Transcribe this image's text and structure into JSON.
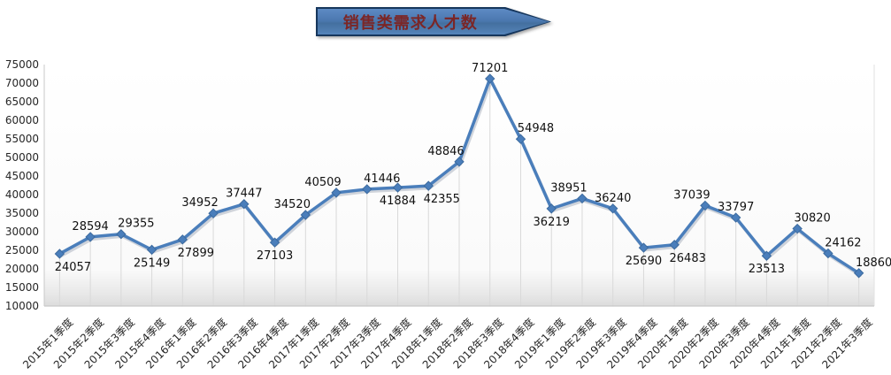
{
  "title": {
    "text": "销售类需求人才数"
  },
  "colors": {
    "line": "#4a7ebb",
    "marker_edge": "#3c6a9e",
    "line_shadow": "rgba(125,138,158,0.35)",
    "drop_line": "#d9d9d9",
    "axis_line": "#c8c8c8",
    "tick_text": "#262626",
    "data_label_text": "#111111",
    "plot_bg_top": "#ffffff",
    "plot_bg_bottom": "#dcdcdc",
    "banner_border": "#16365c",
    "banner_fill_top": "#5d8ac4",
    "banner_fill_bottom": "#5584ba",
    "banner_text": "#7b2626"
  },
  "chart_data": {
    "type": "line",
    "title": "销售类需求人才数",
    "categories": [
      "2015年1季度",
      "2015年2季度",
      "2015年3季度",
      "2015年4季度",
      "2016年1季度",
      "2016年2季度",
      "2016年3季度",
      "2016年4季度",
      "2017年1季度",
      "2017年2季度",
      "2017年3季度",
      "2017年4季度",
      "2018年1季度",
      "2018年2季度",
      "2018年3季度",
      "2018年4季度",
      "2019年1季度",
      "2019年2季度",
      "2019年3季度",
      "2019年4季度",
      "2020年1季度",
      "2020年2季度",
      "2020年3季度",
      "2020年4季度",
      "2021年1季度",
      "2021年2季度",
      "2021年3季度"
    ],
    "series": [
      {
        "name": "销售类需求人才数",
        "values": [
          24057,
          28594,
          29355,
          25149,
          27899,
          34952,
          37447,
          27103,
          34520,
          40509,
          41446,
          41884,
          42355,
          48846,
          71201,
          54948,
          36219,
          38951,
          36240,
          25690,
          26483,
          37039,
          33797,
          23513,
          30820,
          24162,
          18860
        ]
      }
    ],
    "xlabel": "",
    "ylabel": "",
    "ylim": [
      10000,
      75000
    ],
    "ytick_step": 5000,
    "yticks": [
      10000,
      15000,
      20000,
      25000,
      30000,
      35000,
      40000,
      45000,
      50000,
      55000,
      60000,
      65000,
      70000,
      75000
    ],
    "legend": "none",
    "grid": "vertical drop lines from each point to x-axis",
    "marker": "diamond",
    "data_labels": true,
    "label_positions": [
      "below-right",
      "above",
      "above-right",
      "below",
      "below-right",
      "above-left",
      "above",
      "below",
      "above-left",
      "above-left",
      "above-right",
      "below",
      "below-right",
      "above-left",
      "above",
      "above-right",
      "below",
      "above-left",
      "above",
      "below",
      "below-right",
      "above-left",
      "above",
      "below",
      "above-right",
      "above-right",
      "above-right"
    ]
  }
}
